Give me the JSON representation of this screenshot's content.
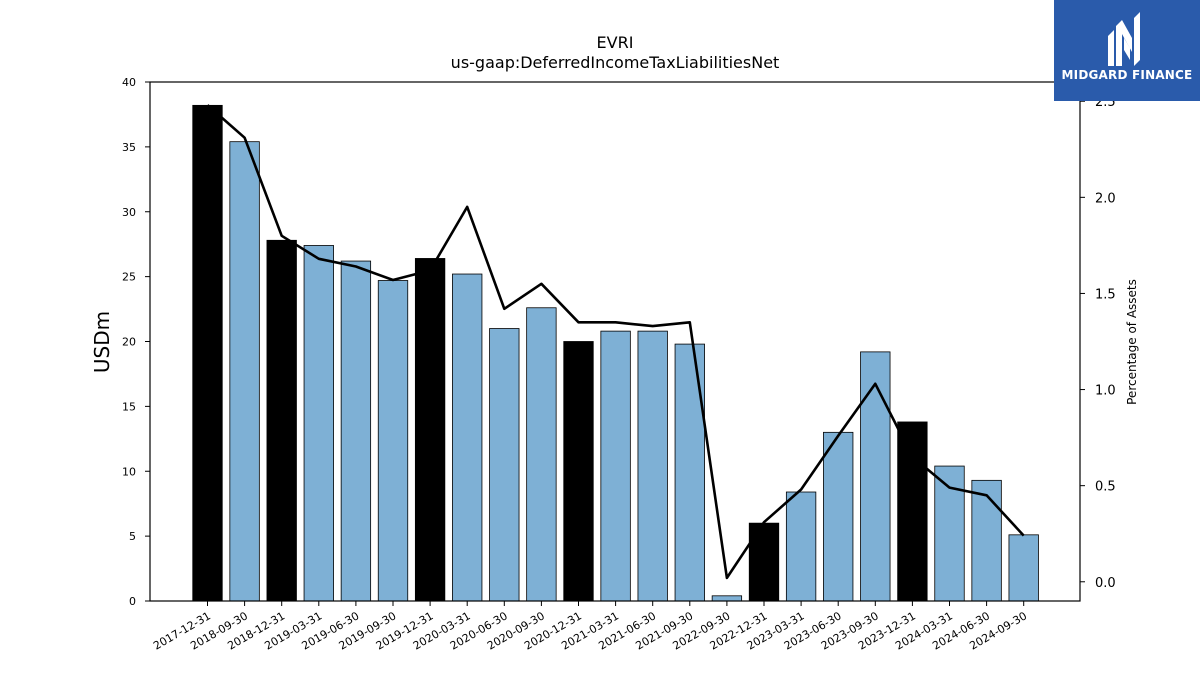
{
  "chart_data": {
    "type": "bar",
    "title": "EVRI",
    "subtitle": "us-gaap:DeferredIncomeTaxLiabilitiesNet",
    "ylabel": "USDm",
    "y2label": "Percentage of Assets",
    "ylim": [
      0,
      40
    ],
    "y2lim": [
      -0.1,
      2.6
    ],
    "yticks": [
      0,
      5,
      10,
      15,
      20,
      25,
      30,
      35,
      40
    ],
    "y2ticks": [
      0.0,
      0.5,
      1.0,
      1.5,
      2.0,
      2.5
    ],
    "categories": [
      "2017-12-31",
      "2018-09-30",
      "2018-12-31",
      "2019-03-31",
      "2019-06-30",
      "2019-09-30",
      "2019-12-31",
      "2020-03-31",
      "2020-06-30",
      "2020-09-30",
      "2020-12-31",
      "2021-03-31",
      "2021-06-30",
      "2021-09-30",
      "2022-09-30",
      "2022-12-31",
      "2023-03-31",
      "2023-06-30",
      "2023-09-30",
      "2023-12-31",
      "2024-03-31",
      "2024-06-30",
      "2024-09-30"
    ],
    "series": [
      {
        "type": "bar",
        "values": [
          38.2,
          35.4,
          27.8,
          27.4,
          26.2,
          24.7,
          26.4,
          25.2,
          21.0,
          22.6,
          20.0,
          20.8,
          20.8,
          19.8,
          0.4,
          6.0,
          8.4,
          13.0,
          19.2,
          13.8,
          10.4,
          9.3,
          5.1
        ],
        "fiscal_year_end": [
          true,
          false,
          true,
          false,
          false,
          false,
          true,
          false,
          false,
          false,
          true,
          false,
          false,
          false,
          false,
          true,
          false,
          false,
          false,
          true,
          false,
          false,
          false
        ]
      },
      {
        "type": "line",
        "axis": "right",
        "values": [
          2.48,
          2.31,
          1.8,
          1.68,
          1.64,
          1.57,
          1.62,
          1.95,
          1.42,
          1.55,
          1.35,
          1.35,
          1.33,
          1.35,
          0.02,
          0.31,
          0.48,
          0.76,
          1.03,
          0.65,
          0.49,
          0.45,
          0.24
        ]
      }
    ],
    "colors": {
      "bar": "#7eb0d5",
      "bar_fiscal_year_end": "#000000",
      "line": "#000000"
    },
    "grid": false
  },
  "logo": {
    "text": "MIDGARD FINANCE",
    "background": "#2a5bab"
  }
}
